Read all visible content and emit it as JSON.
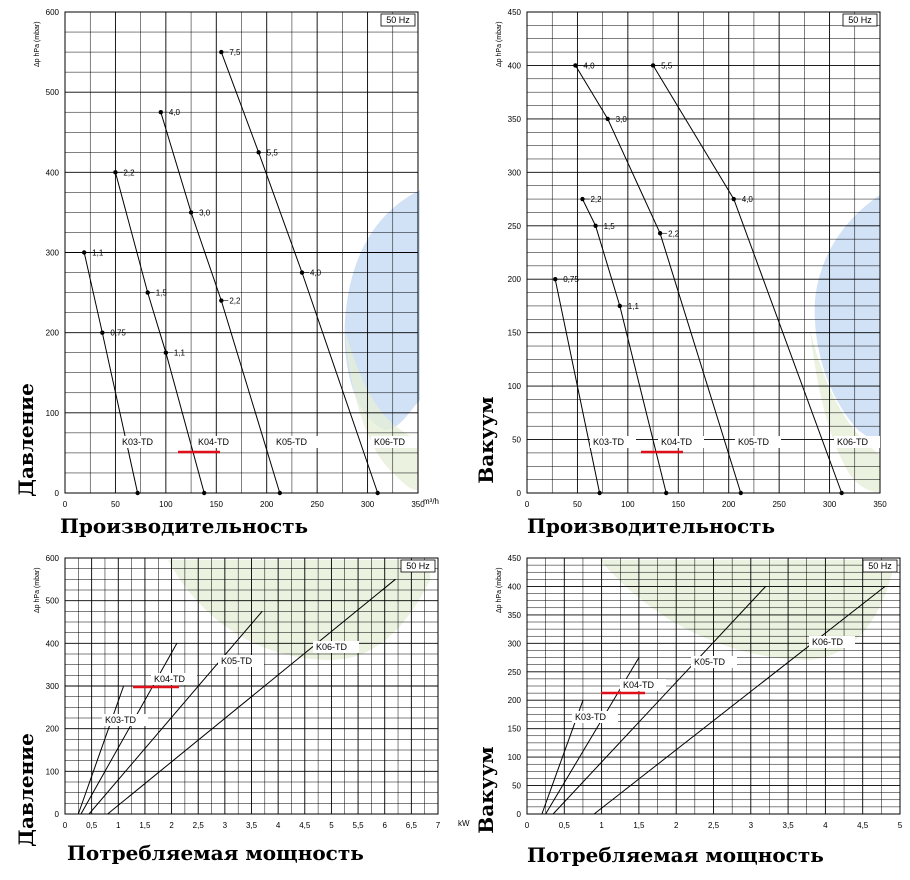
{
  "chart_data": [
    {
      "type": "line",
      "id": "pressure-flow",
      "frequency_label": "50 Hz",
      "ylabel": "Давление",
      "xlabel": "Производительность",
      "yaxis_caption": "Δp  hPa (mbar)",
      "x_unit": "m³/h",
      "xlim": [
        0,
        350
      ],
      "ylim": [
        0,
        600
      ],
      "xticks": [
        "0",
        "50",
        "100",
        "150",
        "200",
        "250",
        "300",
        "350"
      ],
      "yticks": [
        "0",
        "100",
        "200",
        "300",
        "400",
        "500",
        "600"
      ],
      "highlight": "K04-TD",
      "series": [
        {
          "name": "K03-TD",
          "x": [
            72,
            37,
            19
          ],
          "y": [
            0,
            200,
            300
          ],
          "point_labels": [
            "",
            "0,75",
            "1,1"
          ]
        },
        {
          "name": "K04-TD",
          "x": [
            138,
            100,
            82,
            50
          ],
          "y": [
            0,
            175,
            250,
            400
          ],
          "point_labels": [
            "",
            "1,1",
            "1,5",
            "2,2"
          ]
        },
        {
          "name": "K05-TD",
          "x": [
            213,
            155,
            125,
            95
          ],
          "y": [
            0,
            240,
            350,
            475
          ],
          "point_labels": [
            "",
            "2,2",
            "3,0",
            "4,0"
          ]
        },
        {
          "name": "K06-TD",
          "x": [
            310,
            235,
            192,
            155
          ],
          "y": [
            0,
            275,
            425,
            550
          ],
          "point_labels": [
            "",
            "4,0",
            "5,5",
            "7,5"
          ]
        }
      ],
      "series_label_positions_y": [
        60,
        60,
        60,
        60
      ]
    },
    {
      "type": "line",
      "id": "vacuum-flow",
      "frequency_label": "50 Hz",
      "ylabel": "Вакуум",
      "xlabel": "Производительность",
      "yaxis_caption": "Δp  hPa (mbar)",
      "xlim": [
        0,
        350
      ],
      "ylim": [
        0,
        450
      ],
      "xticks": [
        "0",
        "50",
        "100",
        "150",
        "200",
        "250",
        "300",
        "350"
      ],
      "yticks": [
        "0",
        "50",
        "100",
        "150",
        "200",
        "250",
        "300",
        "350",
        "400",
        "450"
      ],
      "highlight": "K04-TD",
      "series": [
        {
          "name": "K03-TD",
          "x": [
            72,
            28
          ],
          "y": [
            0,
            200
          ],
          "point_labels": [
            "",
            "0,75"
          ]
        },
        {
          "name": "K04-TD",
          "x": [
            138,
            92,
            68,
            55
          ],
          "y": [
            0,
            175,
            250,
            275
          ],
          "point_labels": [
            "",
            "1,1",
            "1,5",
            "2,2"
          ]
        },
        {
          "name": "K05-TD",
          "x": [
            212,
            132,
            80,
            48
          ],
          "y": [
            0,
            243,
            350,
            400
          ],
          "point_labels": [
            "",
            "2,2",
            "3,0",
            "4,0"
          ]
        },
        {
          "name": "K06-TD",
          "x": [
            312,
            205,
            125
          ],
          "y": [
            0,
            275,
            400
          ],
          "point_labels": [
            "",
            "4,0",
            "5,5"
          ]
        }
      ]
    },
    {
      "type": "line",
      "id": "pressure-power",
      "frequency_label": "50 Hz",
      "ylabel": "Давление",
      "xlabel": "Потребляемая мощность",
      "yaxis_caption": "Δp  hPa (mbar)",
      "x_unit": "kW",
      "xlim": [
        0,
        7
      ],
      "ylim": [
        0,
        600
      ],
      "xticks": [
        "0",
        "0,5",
        "1",
        "1,5",
        "2",
        "2,5",
        "3",
        "3,5",
        "4",
        "4,5",
        "5",
        "5,5",
        "6",
        "6,5",
        "7"
      ],
      "yticks": [
        "0",
        "100",
        "200",
        "300",
        "400",
        "500",
        "600"
      ],
      "highlight": "K04-TD",
      "series": [
        {
          "name": "K03-TD",
          "x": [
            0.25,
            1.1
          ],
          "y": [
            0,
            300
          ]
        },
        {
          "name": "K04-TD",
          "x": [
            0.3,
            2.1
          ],
          "y": [
            0,
            400
          ]
        },
        {
          "name": "K05-TD",
          "x": [
            0.45,
            3.7
          ],
          "y": [
            0,
            475
          ]
        },
        {
          "name": "K06-TD",
          "x": [
            0.8,
            6.2
          ],
          "y": [
            0,
            550
          ]
        }
      ]
    },
    {
      "type": "line",
      "id": "vacuum-power",
      "frequency_label": "50 Hz",
      "ylabel": "Вакуум",
      "xlabel": "Потребляемая мощность",
      "yaxis_caption": "Δp  hPa (mbar)",
      "xlim": [
        0,
        5
      ],
      "ylim": [
        0,
        450
      ],
      "xticks": [
        "0",
        "0,5",
        "1",
        "1,5",
        "2",
        "2,5",
        "3",
        "3,5",
        "4",
        "4,5",
        "5"
      ],
      "yticks": [
        "0",
        "50",
        "100",
        "150",
        "200",
        "250",
        "300",
        "350",
        "400",
        "450"
      ],
      "highlight": "K04-TD",
      "series": [
        {
          "name": "K03-TD",
          "x": [
            0.2,
            0.75
          ],
          "y": [
            0,
            200
          ]
        },
        {
          "name": "K04-TD",
          "x": [
            0.25,
            1.5
          ],
          "y": [
            0,
            275
          ]
        },
        {
          "name": "K05-TD",
          "x": [
            0.35,
            3.2
          ],
          "y": [
            0,
            400
          ]
        },
        {
          "name": "K06-TD",
          "x": [
            0.9,
            4.8
          ],
          "y": [
            0,
            400
          ]
        }
      ]
    }
  ]
}
